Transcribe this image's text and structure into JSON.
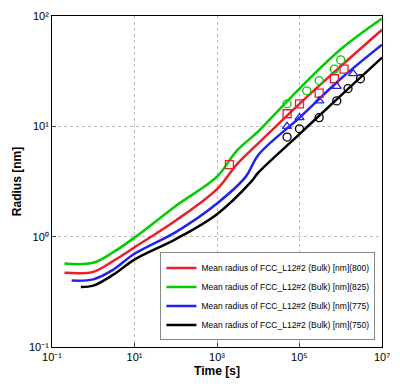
{
  "chart_data": {
    "type": "line",
    "log": true,
    "grid": true,
    "legend": "bottom right",
    "x_label": "Time [s]",
    "y_label": "Radius [nm]",
    "xlim": [
      0.1,
      10000000
    ],
    "ylim": [
      0.1,
      100
    ],
    "xticks": [
      {
        "value": 0.1,
        "label": "10⁻¹"
      },
      {
        "value": 10,
        "label": "10¹"
      },
      {
        "value": 1000,
        "label": "10³"
      },
      {
        "value": 100000,
        "label": "10⁵"
      },
      {
        "value": 10000000,
        "label": "10⁷"
      }
    ],
    "yticks": [
      {
        "value": 0.1,
        "label": "10⁻¹"
      },
      {
        "value": 1,
        "label": "10⁰"
      },
      {
        "value": 10,
        "label": "10¹"
      },
      {
        "value": 100,
        "label": "10²"
      }
    ],
    "series": [
      {
        "name": "Mean radius of FCC_L12#2 (Bulk) [nm](800)",
        "type": "line",
        "color": "#e8202a",
        "x": [
          0.2,
          1,
          3,
          10,
          100,
          1000,
          3000,
          10000,
          100000,
          1000000,
          10000000
        ],
        "values": [
          0.47,
          0.48,
          0.6,
          0.8,
          1.4,
          2.7,
          4.5,
          7,
          16,
          35,
          75
        ]
      },
      {
        "name": "Mean radius of FCC_L12#2 (Bulk) [nm](825)",
        "type": "line",
        "color": "#00cc00",
        "x": [
          0.2,
          1,
          3,
          10,
          100,
          1000,
          3000,
          10000,
          100000,
          1000000,
          10000000
        ],
        "values": [
          0.57,
          0.58,
          0.72,
          0.98,
          1.9,
          3.5,
          6,
          9,
          22,
          50,
          95
        ]
      },
      {
        "name": "Mean radius of FCC_L12#2 (Bulk) [nm](775)",
        "type": "line",
        "color": "#2222ee",
        "x": [
          0.3,
          1,
          3,
          10,
          100,
          1000,
          5000,
          10000,
          100000,
          1000000,
          10000000
        ],
        "values": [
          0.4,
          0.41,
          0.5,
          0.7,
          1.1,
          2.0,
          3.5,
          5.5,
          12,
          27,
          55
        ]
      },
      {
        "name": "Mean radius of FCC_L12#2 (Bulk) [nm](750)",
        "type": "line",
        "color": "#000000",
        "x": [
          0.5,
          1,
          3,
          10,
          100,
          1000,
          7000,
          10000,
          100000,
          1000000,
          10000000
        ],
        "values": [
          0.35,
          0.36,
          0.45,
          0.62,
          0.95,
          1.6,
          3.2,
          3.8,
          8.5,
          19,
          42
        ]
      },
      {
        "type": "scatter",
        "marker": "square-open",
        "color": "#e8202a",
        "x": [
          2000,
          50000,
          100000,
          300000,
          700000,
          1200000
        ],
        "values": [
          4.5,
          13,
          16,
          20,
          27,
          33
        ]
      },
      {
        "type": "scatter",
        "marker": "circle-open",
        "color": "#00cc00",
        "x": [
          50000,
          150000,
          300000,
          700000,
          1000000
        ],
        "values": [
          16,
          21,
          26,
          33,
          40
        ]
      },
      {
        "type": "scatter",
        "marker": "triangle-up-open",
        "color": "#2222ee",
        "x": [
          50000,
          100000,
          300000,
          800000,
          2000000
        ],
        "values": [
          10,
          12,
          17,
          23,
          30
        ]
      },
      {
        "type": "scatter",
        "marker": "circle-open",
        "color": "#000000",
        "x": [
          50000,
          100000,
          300000,
          800000,
          1500000,
          3000000
        ],
        "values": [
          8,
          9.5,
          12,
          17,
          22,
          27
        ]
      }
    ]
  }
}
